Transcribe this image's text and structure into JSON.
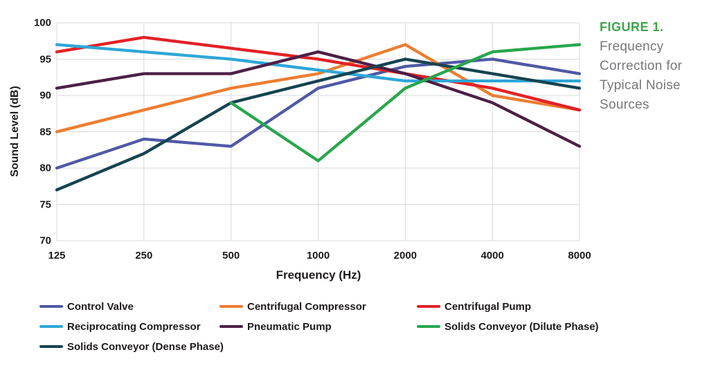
{
  "figure": {
    "label": "FIGURE 1.",
    "label_color": "#3EA34A",
    "caption_text": "Frequency\nCorrection for\nTypical Noise\nSources",
    "caption_color": "#77787B"
  },
  "chart_data": {
    "type": "line",
    "xlabel": "Frequency (Hz)",
    "ylabel": "Sound Level (dB)",
    "categories": [
      125,
      250,
      500,
      1000,
      2000,
      4000,
      8000
    ],
    "x_tick_labels": [
      "125",
      "250",
      "500",
      "1000",
      "2000",
      "4000",
      "8000"
    ],
    "y_tick_labels": [
      "100",
      "95",
      "90",
      "85",
      "80",
      "75",
      "70"
    ],
    "y_ticks": [
      100,
      95,
      90,
      85,
      80,
      75,
      70
    ],
    "ylim": [
      70,
      100
    ],
    "grid": true,
    "gridline_color": "#d8d8d8",
    "legend_position": "bottom",
    "series": [
      {
        "name": "Control Valve",
        "color": "#4F59A6",
        "values": [
          80,
          84,
          83,
          91,
          94,
          95,
          93
        ]
      },
      {
        "name": "Centrifugal Compressor",
        "color": "#ED7D31",
        "values": [
          85,
          88,
          91,
          93,
          97,
          90,
          88
        ]
      },
      {
        "name": "Centrifugal Pump",
        "color": "#E32126",
        "values": [
          96,
          98,
          96.5,
          95,
          93,
          91,
          88
        ]
      },
      {
        "name": "Reciprocating Compressor",
        "color": "#2EA6D8",
        "values": [
          97,
          96,
          95,
          93.5,
          92,
          92,
          92
        ]
      },
      {
        "name": "Pneumatic Pump",
        "color": "#4C2046",
        "values": [
          91,
          93,
          93,
          96,
          93,
          89,
          83
        ]
      },
      {
        "name": "Solids Conveyor (Dilute Phase)",
        "color": "#27A64C",
        "values": [
          null,
          null,
          89,
          81,
          91,
          96,
          97
        ]
      },
      {
        "name": "Solids Conveyor (Dense Phase)",
        "color": "#164350",
        "values": [
          77,
          82,
          89,
          92,
          95,
          93,
          91
        ]
      }
    ],
    "draw_order": [
      0,
      1,
      2,
      3,
      4,
      6,
      5
    ]
  }
}
